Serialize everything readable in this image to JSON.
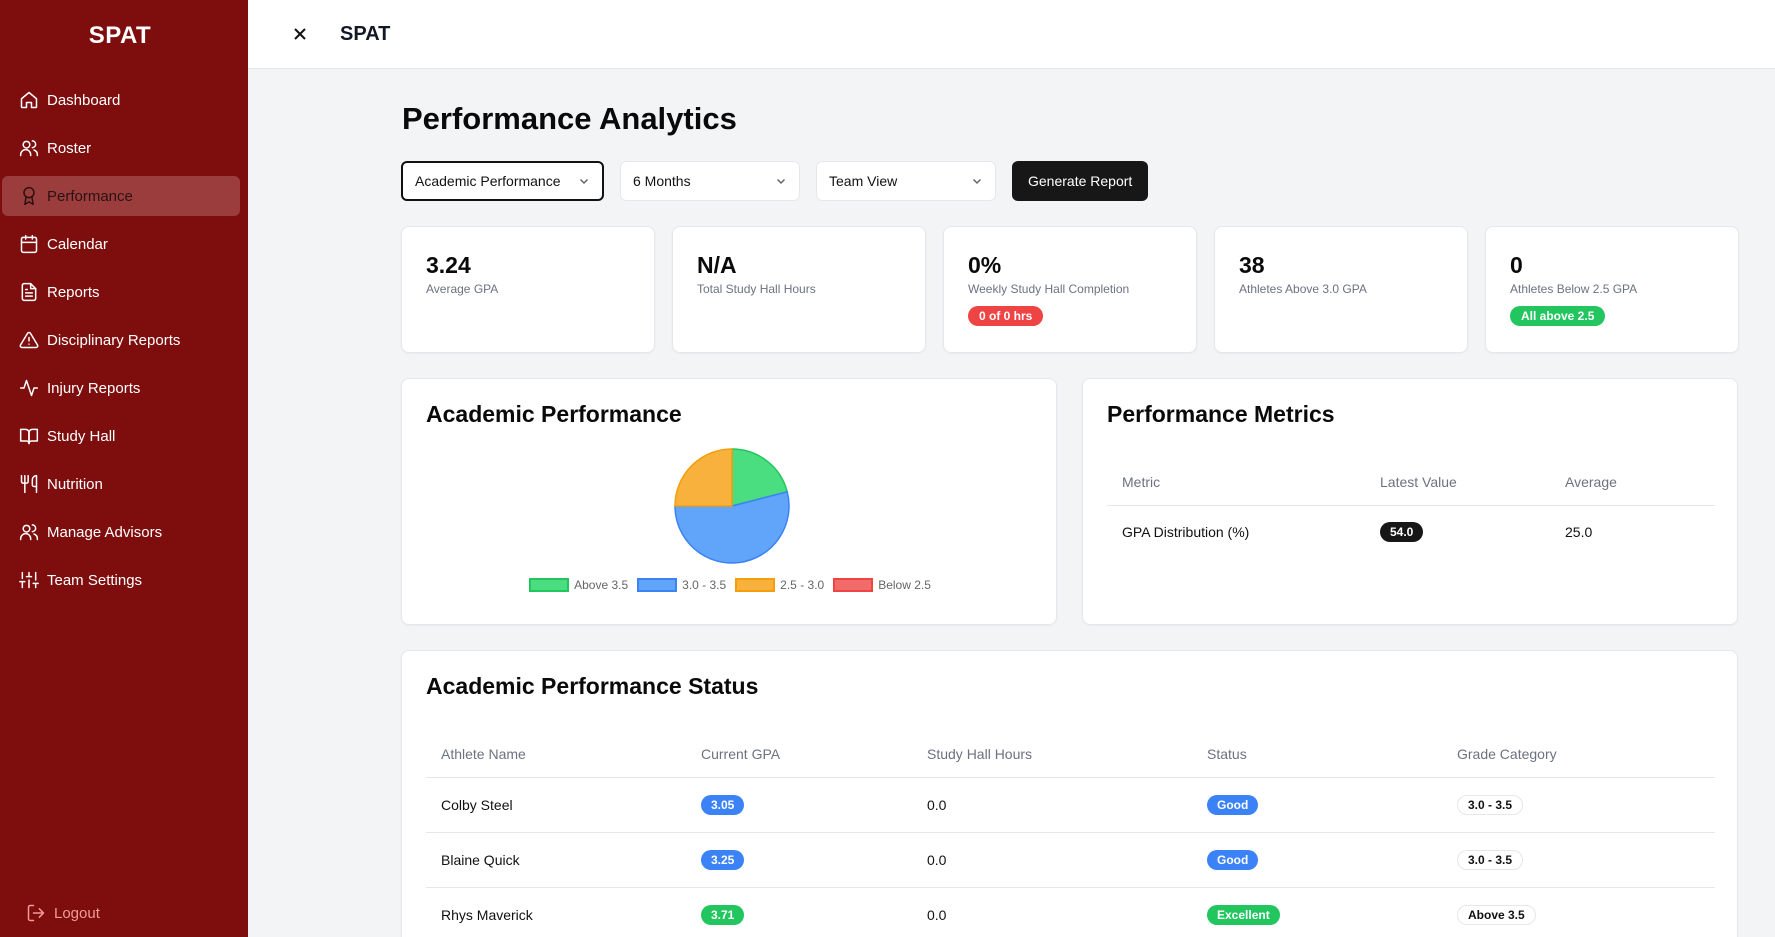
{
  "app": {
    "brand": "SPAT",
    "header_title": "SPAT"
  },
  "sidebar": {
    "items": [
      {
        "label": "Dashboard",
        "icon": "home-icon"
      },
      {
        "label": "Roster",
        "icon": "users-icon"
      },
      {
        "label": "Performance",
        "icon": "award-icon",
        "active": true
      },
      {
        "label": "Calendar",
        "icon": "calendar-icon"
      },
      {
        "label": "Reports",
        "icon": "file-text-icon"
      },
      {
        "label": "Disciplinary Reports",
        "icon": "alert-triangle-icon"
      },
      {
        "label": "Injury Reports",
        "icon": "activity-icon"
      },
      {
        "label": "Study Hall",
        "icon": "book-open-icon"
      },
      {
        "label": "Nutrition",
        "icon": "utensils-icon"
      },
      {
        "label": "Manage Advisors",
        "icon": "users-icon"
      },
      {
        "label": "Team Settings",
        "icon": "sliders-icon"
      }
    ],
    "logout_label": "Logout"
  },
  "page": {
    "title": "Performance Analytics"
  },
  "filters": {
    "category": "Academic Performance",
    "period": "6 Months",
    "view": "Team View",
    "generate_label": "Generate Report"
  },
  "stats": [
    {
      "value": "3.24",
      "label": "Average GPA"
    },
    {
      "value": "N/A",
      "label": "Total Study Hall Hours"
    },
    {
      "value": "0%",
      "label": "Weekly Study Hall Completion",
      "badge": "0 of 0 hrs",
      "badge_color": "#ef4444"
    },
    {
      "value": "38",
      "label": "Athletes Above 3.0 GPA"
    },
    {
      "value": "0",
      "label": "Athletes Below 2.5 GPA",
      "badge": "All above 2.5",
      "badge_color": "#22c55e"
    }
  ],
  "chart_data": {
    "type": "pie",
    "title": "Academic Performance",
    "categories": [
      "Above 3.5",
      "3.0 - 3.5",
      "2.5 - 3.0",
      "Below 2.5"
    ],
    "values": [
      21,
      54,
      25,
      0
    ],
    "colors": [
      "#4ade80",
      "#60a5fa",
      "#f8b13c",
      "#f26b6b"
    ],
    "border_colors": [
      "#22c55e",
      "#3b82f6",
      "#f59e0b",
      "#ef4444"
    ],
    "legend_position": "bottom"
  },
  "metrics": {
    "title": "Performance Metrics",
    "columns": [
      "Metric",
      "Latest Value",
      "Average"
    ],
    "rows": [
      {
        "metric": "GPA Distribution (%)",
        "latest": "54.0",
        "average": "25.0"
      }
    ]
  },
  "status": {
    "title": "Academic Performance Status",
    "columns": [
      "Athlete Name",
      "Current GPA",
      "Study Hall Hours",
      "Status",
      "Grade Category"
    ],
    "rows": [
      {
        "name": "Colby Steel",
        "gpa": "3.05",
        "gpa_color": "blue",
        "hours": "0.0",
        "status": "Good",
        "status_color": "blue",
        "category": "3.0 - 3.5"
      },
      {
        "name": "Blaine Quick",
        "gpa": "3.25",
        "gpa_color": "blue",
        "hours": "0.0",
        "status": "Good",
        "status_color": "blue",
        "category": "3.0 - 3.5"
      },
      {
        "name": "Rhys Maverick",
        "gpa": "3.71",
        "gpa_color": "green",
        "hours": "0.0",
        "status": "Excellent",
        "status_color": "green",
        "category": "Above 3.5"
      }
    ]
  }
}
